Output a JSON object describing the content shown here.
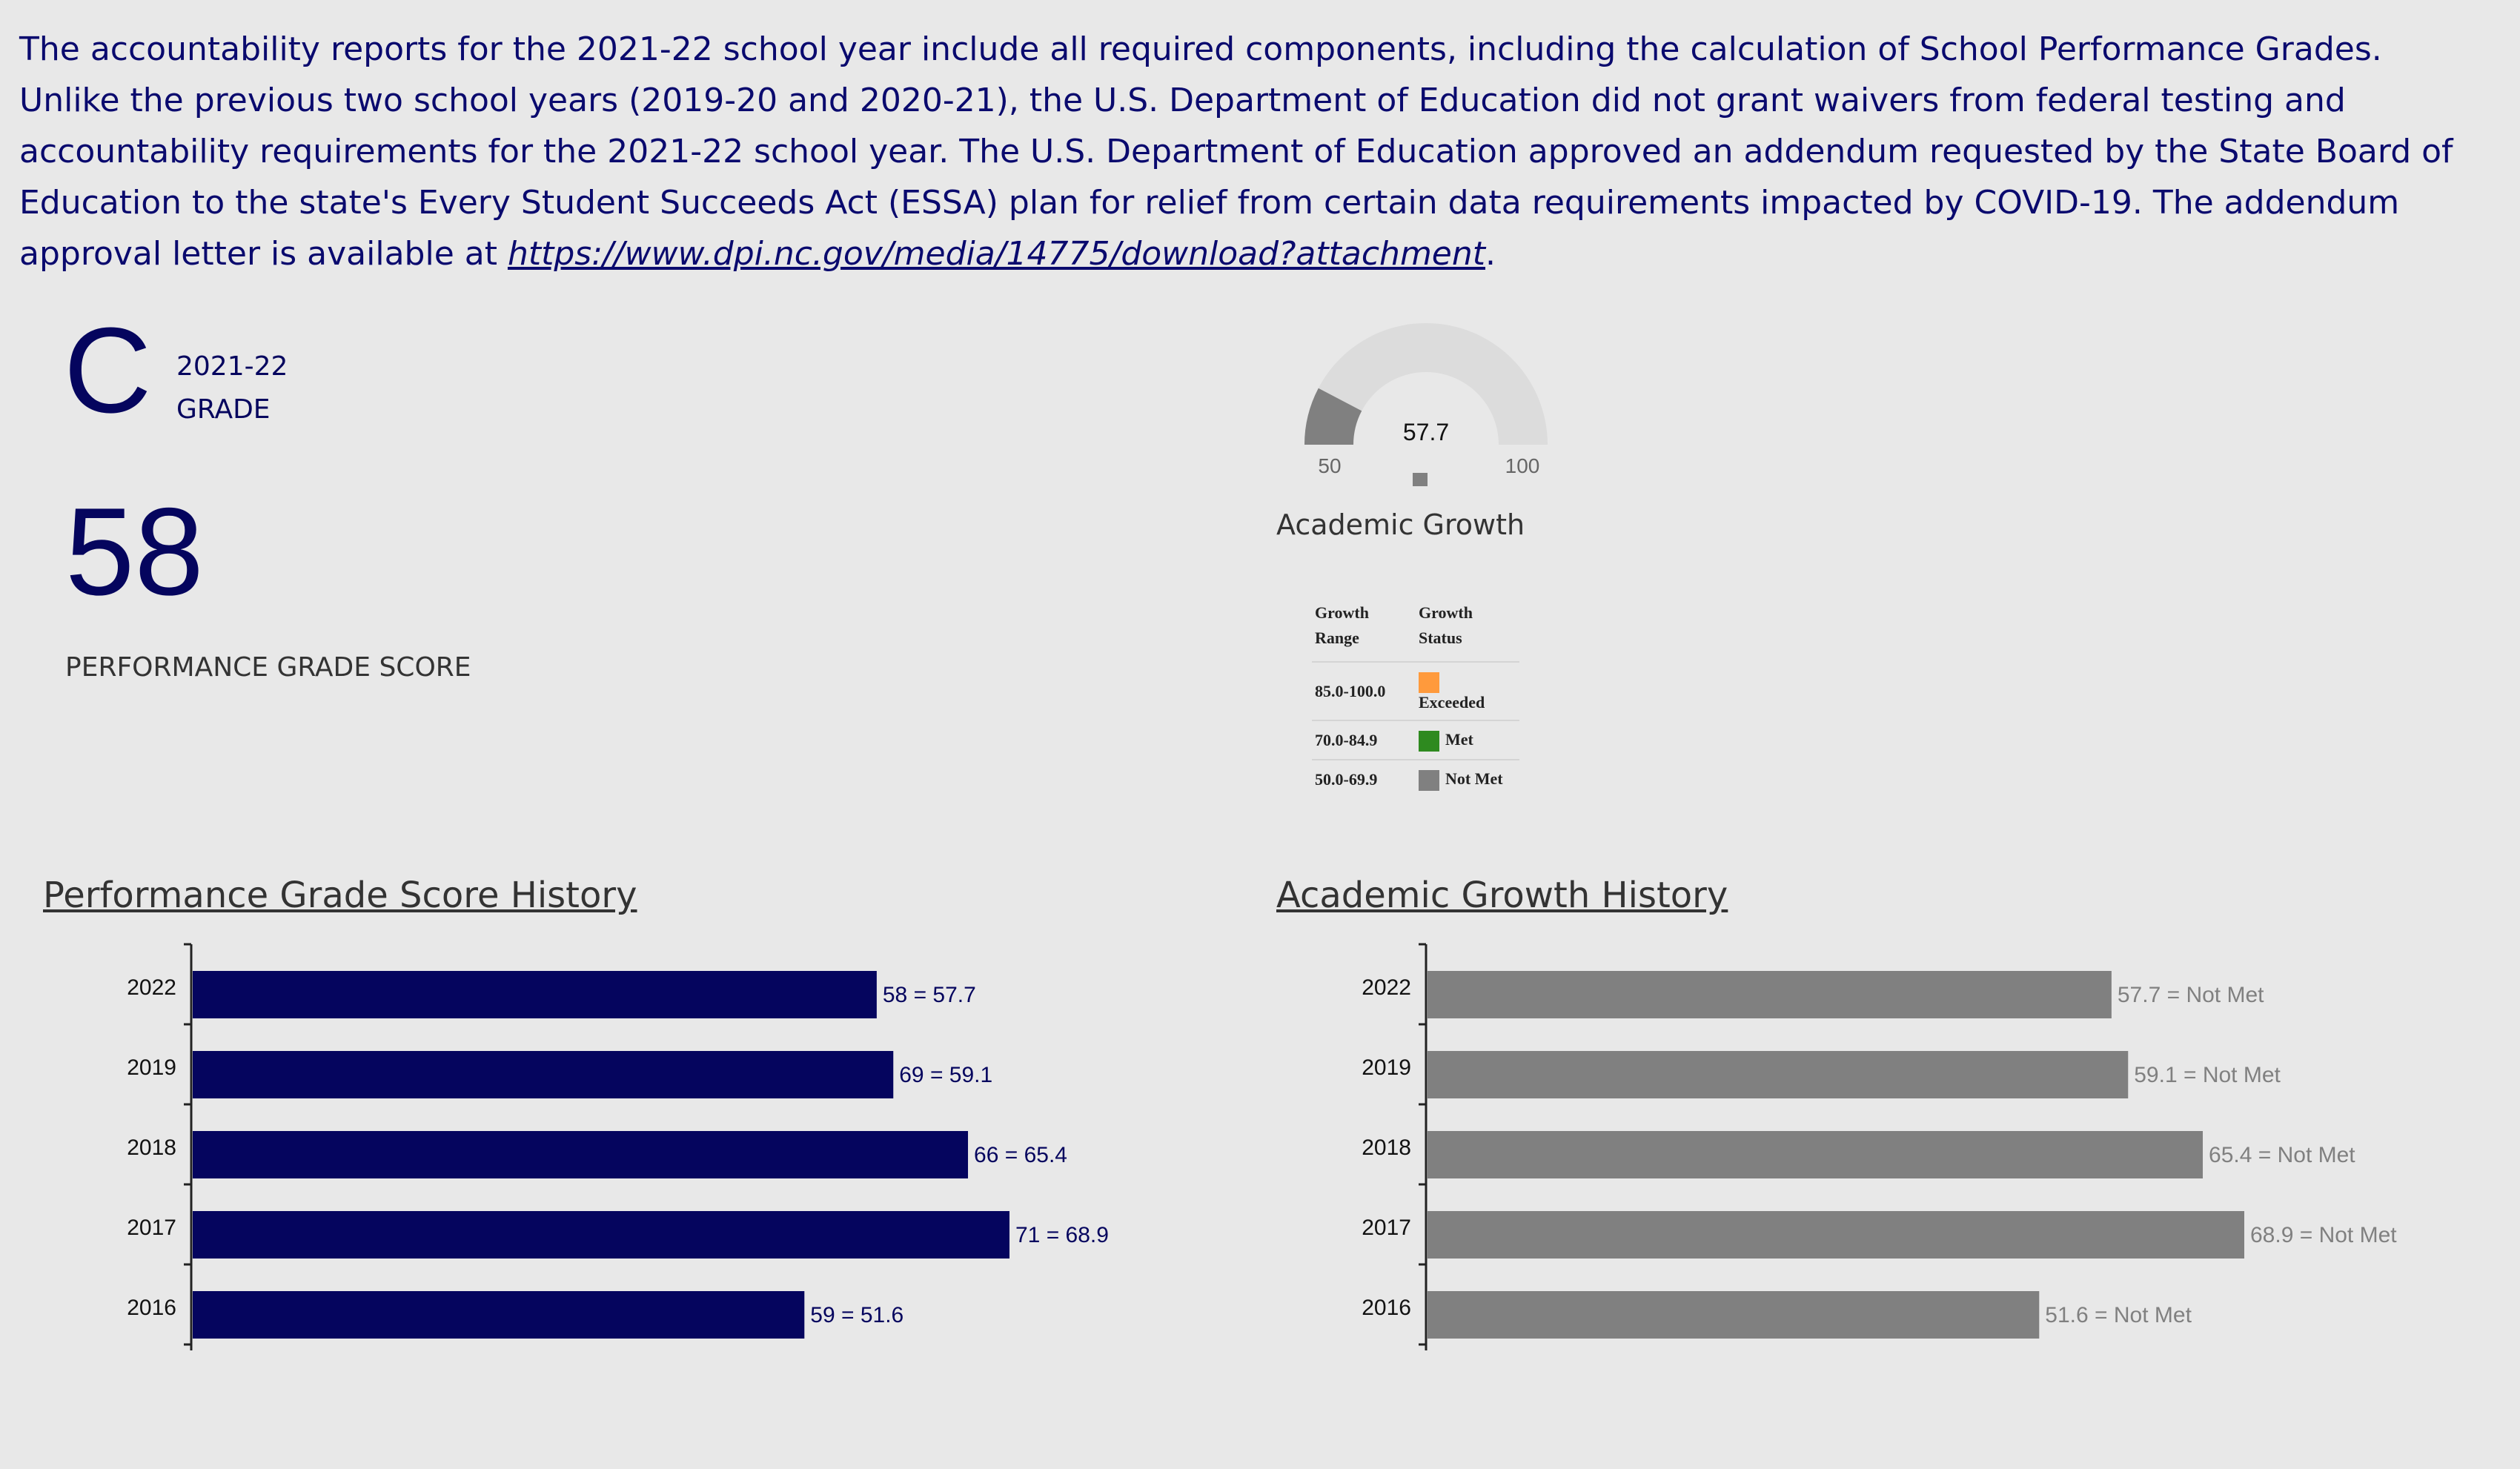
{
  "intro": {
    "text": "The accountability reports for the 2021-22 school year include all required components, including the calculation of School Performance Grades. Unlike the previous two school years (2019-20 and 2020-21), the U.S. Department of Education did not grant waivers from federal testing and accountability requirements for the 2021-22 school year. The U.S. Department of Education approved an addendum requested by the State Board of Education to the state's Every Student Succeeds Act (ESSA) plan for relief from certain data requirements impacted by COVID-19. The addendum approval letter is available at ",
    "link_text": "https://www.dpi.nc.gov/media/14775/download?attachment",
    "suffix": "."
  },
  "grade": {
    "letter": "C",
    "year": "2021-22",
    "label": "GRADE"
  },
  "performance": {
    "score": "58",
    "label": "PERFORMANCE GRADE SCORE"
  },
  "gauge": {
    "value": 57.7,
    "value_text": "57.7",
    "min": 50,
    "max": 100,
    "min_text": "50",
    "max_text": "100",
    "title": "Academic Growth",
    "fill_color": "#808080",
    "track_color": "#dcdcdc"
  },
  "legend": {
    "header_range": "Growth Range",
    "header_status": "Growth Status",
    "rows": [
      {
        "range": "85.0-100.0",
        "status": "Exceeded",
        "color": "#ff9a3c"
      },
      {
        "range": "70.0-84.9",
        "status": "Met",
        "color": "#2e8a1f"
      },
      {
        "range": "50.0-69.9",
        "status": "Not Met",
        "color": "#808080"
      }
    ]
  },
  "history_titles": {
    "performance": "Performance Grade Score History",
    "growth": "Academic Growth History"
  },
  "chart_data": [
    {
      "type": "bar",
      "orientation": "horizontal",
      "title": "Performance Grade Score History",
      "categories": [
        "2022",
        "2019",
        "2018",
        "2017",
        "2016"
      ],
      "values": [
        57.7,
        59.1,
        65.4,
        68.9,
        51.6
      ],
      "data_labels": [
        "58 = 57.7",
        "69 = 59.1",
        "66 = 65.4",
        "71 = 68.9",
        "59 = 51.6"
      ],
      "color": "#05055e",
      "label_color": "#05055e"
    },
    {
      "type": "bar",
      "orientation": "horizontal",
      "title": "Academic Growth History",
      "categories": [
        "2022",
        "2019",
        "2018",
        "2017",
        "2016"
      ],
      "values": [
        57.7,
        59.1,
        65.4,
        68.9,
        51.6
      ],
      "data_labels": [
        "57.7 = Not Met",
        "59.1 = Not Met",
        "65.4 = Not Met",
        "68.9 = Not Met",
        "51.6 = Not Met"
      ],
      "color": "#808080",
      "label_color": "#808080"
    }
  ]
}
